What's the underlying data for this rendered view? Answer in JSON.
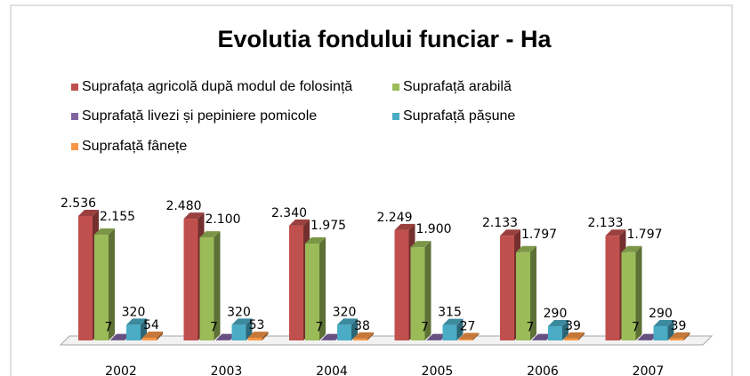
{
  "chart_data": {
    "type": "bar",
    "title": "Evolutia fondului funciar - Ha",
    "categories": [
      "2002",
      "2003",
      "2004",
      "2005",
      "2006",
      "2007"
    ],
    "series": [
      {
        "name": "Suprafața agricolă după modul de folosință",
        "color": "#c0504d",
        "values": [
          2536,
          2480,
          2340,
          2249,
          2133,
          2133
        ],
        "value_labels": [
          "2.536",
          "2.480",
          "2.340",
          "2.249",
          "2.133",
          "2.133"
        ]
      },
      {
        "name": "Suprafață arabilă",
        "color": "#9bbb59",
        "values": [
          2155,
          2100,
          1975,
          1900,
          1797,
          1797
        ],
        "value_labels": [
          "2.155",
          "2.100",
          "1.975",
          "1.900",
          "1.797",
          "1.797"
        ]
      },
      {
        "name": "Suprafață livezi și pepiniere pomicole",
        "color": "#8064a2",
        "values": [
          7,
          7,
          7,
          7,
          7,
          7
        ]
      },
      {
        "name": "Suprafață pășune",
        "color": "#4bacc6",
        "values": [
          320,
          320,
          320,
          315,
          290,
          290
        ]
      },
      {
        "name": "Suprafață fânețe",
        "color": "#f79646",
        "values": [
          54,
          53,
          38,
          27,
          39,
          39
        ]
      }
    ]
  }
}
